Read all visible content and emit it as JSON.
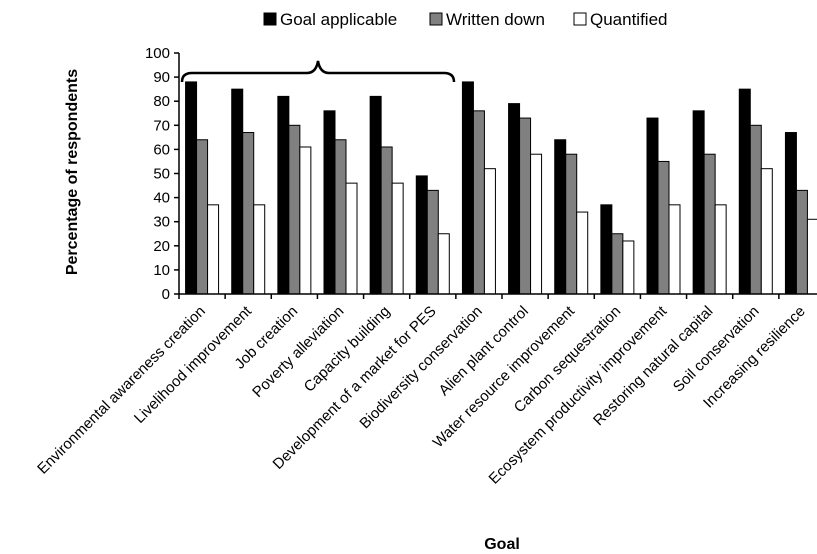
{
  "chart_data": {
    "type": "bar",
    "xlabel": "Goal",
    "ylabel": "Percentage of respondents",
    "ylim": [
      0,
      100
    ],
    "yticks": [
      0,
      10,
      20,
      30,
      40,
      50,
      60,
      70,
      80,
      90,
      100
    ],
    "grid": false,
    "legend_position": "top",
    "categories": [
      "Environmental awareness creation",
      "Livelihood improvement",
      "Job creation",
      "Poverty alleviation",
      "Capacity building",
      "Development of a market for PES",
      "Biodiversity conservation",
      "Alien plant control",
      "Water resource improvement",
      "Carbon sequestration",
      "Ecosystem productivity improvement",
      "Restoring natural capital",
      "Soil conservation",
      "Increasing resilience"
    ],
    "series": [
      {
        "name": "Goal applicable",
        "color": "#000000",
        "values": [
          88,
          85,
          82,
          76,
          82,
          49,
          88,
          79,
          64,
          37,
          73,
          76,
          85,
          67
        ]
      },
      {
        "name": "Written down",
        "color": "#808080",
        "values": [
          64,
          67,
          70,
          64,
          61,
          43,
          76,
          73,
          58,
          25,
          55,
          58,
          70,
          43
        ]
      },
      {
        "name": "Quantified",
        "color": "#ffffff",
        "values": [
          37,
          37,
          61,
          46,
          46,
          25,
          52,
          58,
          34,
          22,
          37,
          37,
          52,
          31
        ]
      }
    ]
  }
}
